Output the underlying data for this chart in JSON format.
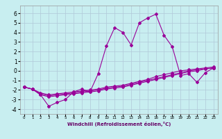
{
  "xlabel": "Windchill (Refroidissement éolien,°C)",
  "bg_color": "#c8eef0",
  "grid_color": "#b0c8d8",
  "line_color": "#990099",
  "xlim": [
    -0.5,
    23.5
  ],
  "ylim": [
    -4.5,
    6.8
  ],
  "xticks": [
    0,
    1,
    2,
    3,
    4,
    5,
    6,
    7,
    8,
    9,
    10,
    11,
    12,
    13,
    14,
    15,
    16,
    17,
    18,
    19,
    20,
    21,
    22,
    23
  ],
  "yticks": [
    -4,
    -3,
    -2,
    -1,
    0,
    1,
    2,
    3,
    4,
    5,
    6
  ],
  "series1_x": [
    0,
    1,
    2,
    3,
    4,
    5,
    6,
    7,
    8,
    9,
    10,
    11,
    12,
    13,
    14,
    15,
    16,
    17,
    18,
    19,
    20,
    21,
    22,
    23
  ],
  "series1_y": [
    -1.7,
    -1.9,
    -2.5,
    -3.7,
    -3.3,
    -3.0,
    -2.2,
    -1.9,
    -2.2,
    -0.3,
    2.6,
    4.5,
    4.0,
    2.7,
    5.0,
    5.5,
    5.9,
    3.7,
    2.5,
    -0.5,
    -0.3,
    -1.2,
    -0.2,
    0.3
  ],
  "series2_x": [
    0,
    1,
    2,
    3,
    4,
    5,
    6,
    7,
    8,
    9,
    10,
    11,
    12,
    13,
    14,
    15,
    16,
    17,
    18,
    19,
    20,
    21,
    22,
    23
  ],
  "series2_y": [
    -1.7,
    -1.9,
    -2.3,
    -2.5,
    -2.4,
    -2.3,
    -2.2,
    -2.1,
    -2.0,
    -1.9,
    -1.7,
    -1.6,
    -1.5,
    -1.3,
    -1.1,
    -0.9,
    -0.6,
    -0.4,
    -0.2,
    0.0,
    0.1,
    0.2,
    0.3,
    0.4
  ],
  "series3_x": [
    0,
    1,
    2,
    3,
    4,
    5,
    6,
    7,
    8,
    9,
    10,
    11,
    12,
    13,
    14,
    15,
    16,
    17,
    18,
    19,
    20,
    21,
    22,
    23
  ],
  "series3_y": [
    -1.7,
    -1.9,
    -2.4,
    -2.6,
    -2.5,
    -2.4,
    -2.3,
    -2.2,
    -2.1,
    -2.0,
    -1.8,
    -1.7,
    -1.6,
    -1.4,
    -1.2,
    -1.0,
    -0.8,
    -0.6,
    -0.4,
    -0.2,
    -0.0,
    0.1,
    0.2,
    0.3
  ],
  "series4_x": [
    0,
    1,
    2,
    3,
    4,
    5,
    6,
    7,
    8,
    9,
    10,
    11,
    12,
    13,
    14,
    15,
    16,
    17,
    18,
    19,
    20,
    21,
    22,
    23
  ],
  "series4_y": [
    -1.7,
    -1.9,
    -2.5,
    -2.7,
    -2.6,
    -2.5,
    -2.4,
    -2.3,
    -2.2,
    -2.1,
    -1.9,
    -1.8,
    -1.7,
    -1.5,
    -1.3,
    -1.1,
    -0.9,
    -0.7,
    -0.5,
    -0.3,
    -0.1,
    0.0,
    0.2,
    0.3
  ]
}
